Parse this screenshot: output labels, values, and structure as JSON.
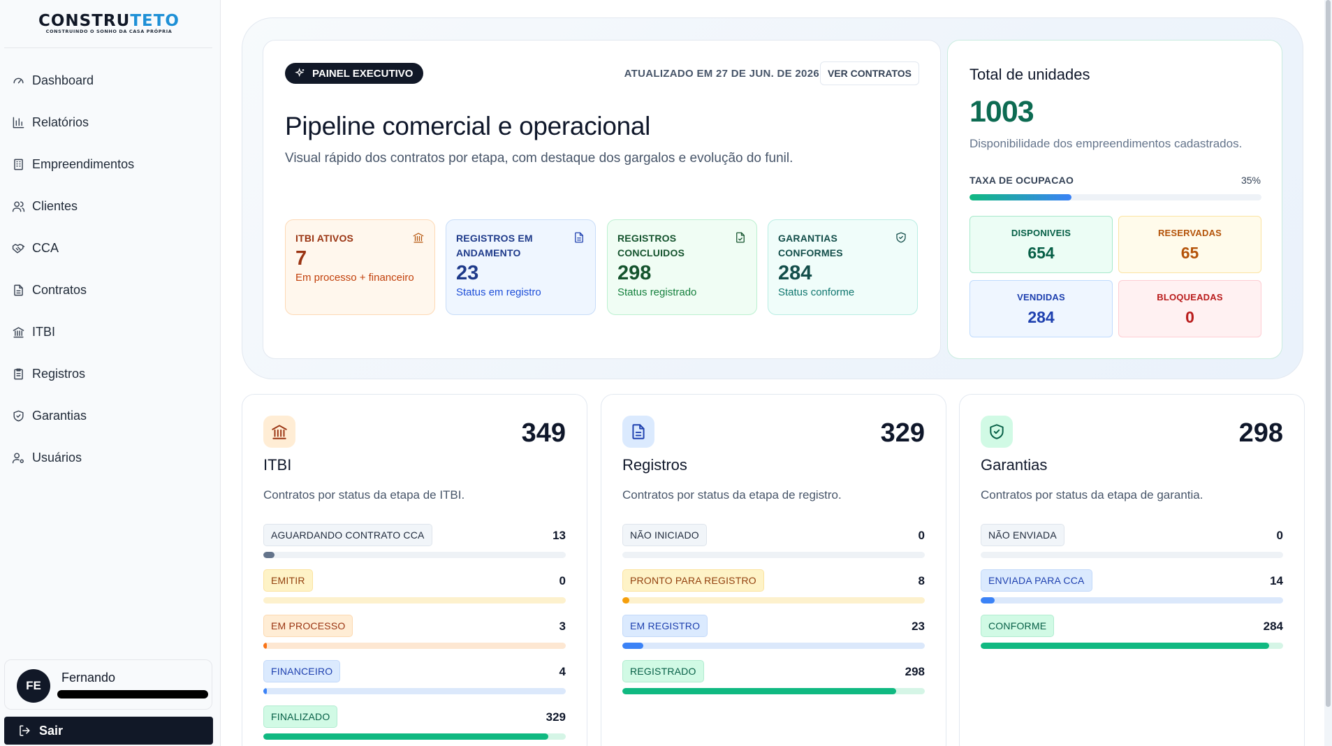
{
  "brand": {
    "name_part1": "CONSTRU",
    "name_part2": "TETO",
    "tagline": "CONSTRUINDO O SONHO DA CASA PRÓPRIA",
    "accent_color": "#1e90d6"
  },
  "sidebar": {
    "items": [
      {
        "label": "Dashboard",
        "icon": "gauge-icon"
      },
      {
        "label": "Relatórios",
        "icon": "bar-chart-icon"
      },
      {
        "label": "Empreendimentos",
        "icon": "building-icon"
      },
      {
        "label": "Clientes",
        "icon": "users-icon"
      },
      {
        "label": "CCA",
        "icon": "handshake-icon"
      },
      {
        "label": "Contratos",
        "icon": "file-text-icon"
      },
      {
        "label": "ITBI",
        "icon": "landmark-icon"
      },
      {
        "label": "Registros",
        "icon": "clipboard-icon"
      },
      {
        "label": "Garantias",
        "icon": "shield-check-icon"
      },
      {
        "label": "Usuários",
        "icon": "user-cog-icon"
      }
    ],
    "user": {
      "initials": "FE",
      "name": "Fernando"
    },
    "logout_label": "Sair"
  },
  "pipeline": {
    "badge": "PAINEL EXECUTIVO",
    "updated": "ATUALIZADO EM 27 DE JUN. DE 2026",
    "view_contracts": "VER CONTRATOS",
    "title": "Pipeline comercial e operacional",
    "subtitle": "Visual rápido dos contratos por etapa, com destaque dos gargalos e evolução do funil.",
    "kpis": [
      {
        "label": "ITBI ATIVOS",
        "value": "7",
        "caption": "Em processo + financeiro",
        "icon": "landmark-icon"
      },
      {
        "label": "REGISTROS EM ANDAMENTO",
        "value": "23",
        "caption": "Status em registro",
        "icon": "file-text-icon"
      },
      {
        "label": "REGISTROS CONCLUIDOS",
        "value": "298",
        "caption": "Status registrado",
        "icon": "file-check-icon"
      },
      {
        "label": "GARANTIAS CONFORMES",
        "value": "284",
        "caption": "Status conforme",
        "icon": "shield-check-icon"
      }
    ]
  },
  "units": {
    "title": "Total de unidades",
    "total": "1003",
    "subtitle": "Disponibilidade dos empreendimentos cadastrados.",
    "occupancy_label": "TAXA DE OCUPACAO",
    "occupancy_pct": "35%",
    "occupancy_value": 0.35,
    "boxes": [
      {
        "label": "DISPONIVEIS",
        "value": "654"
      },
      {
        "label": "RESERVADAS",
        "value": "65"
      },
      {
        "label": "VENDIDAS",
        "value": "284"
      },
      {
        "label": "BLOQUEADAS",
        "value": "0"
      }
    ]
  },
  "stages": [
    {
      "title": "ITBI",
      "total": "349",
      "description": "Contratos por status da etapa de ITBI.",
      "icon": "landmark-icon",
      "rows": [
        {
          "label": "AGUARDANDO CONTRATO CCA",
          "count": "13",
          "fraction": 0.037,
          "color": "slate"
        },
        {
          "label": "EMITIR",
          "count": "0",
          "fraction": 0,
          "color": "amber"
        },
        {
          "label": "EM PROCESSO",
          "count": "3",
          "fraction": 0.009,
          "color": "orange"
        },
        {
          "label": "FINANCEIRO",
          "count": "4",
          "fraction": 0.011,
          "color": "blue"
        },
        {
          "label": "FINALIZADO",
          "count": "329",
          "fraction": 0.943,
          "color": "green"
        }
      ]
    },
    {
      "title": "Registros",
      "total": "329",
      "description": "Contratos por status da etapa de registro.",
      "icon": "file-text-icon",
      "rows": [
        {
          "label": "NÃO INICIADO",
          "count": "0",
          "fraction": 0,
          "color": "slate"
        },
        {
          "label": "PRONTO PARA REGISTRO",
          "count": "8",
          "fraction": 0.024,
          "color": "amber"
        },
        {
          "label": "EM REGISTRO",
          "count": "23",
          "fraction": 0.07,
          "color": "blue"
        },
        {
          "label": "REGISTRADO",
          "count": "298",
          "fraction": 0.906,
          "color": "green"
        }
      ]
    },
    {
      "title": "Garantias",
      "total": "298",
      "description": "Contratos por status da etapa de garantia.",
      "icon": "shield-check-icon",
      "rows": [
        {
          "label": "NÃO ENVIADA",
          "count": "0",
          "fraction": 0,
          "color": "slate"
        },
        {
          "label": "ENVIADA PARA CCA",
          "count": "14",
          "fraction": 0.047,
          "color": "blue"
        },
        {
          "label": "CONFORME",
          "count": "284",
          "fraction": 0.953,
          "color": "green"
        }
      ]
    }
  ]
}
